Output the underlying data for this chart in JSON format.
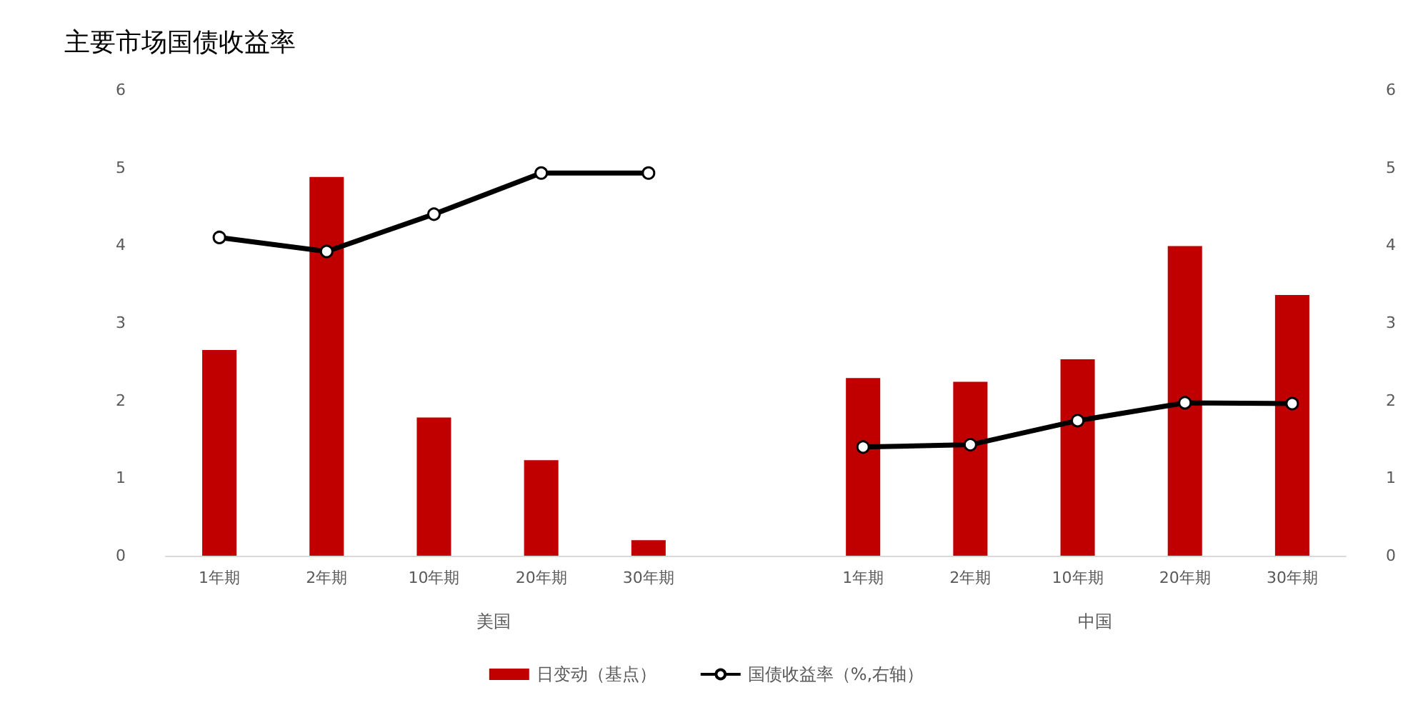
{
  "chart_data": {
    "type": "bar",
    "title": "主要市场国债收益率",
    "categories": [
      "1年期",
      "2年期",
      "10年期",
      "20年期",
      "30年期",
      null,
      "1年期",
      "2年期",
      "10年期",
      "20年期",
      "30年期"
    ],
    "series": [
      {
        "name": "日变动（基点）",
        "color": "#c00000",
        "values": [
          2.65,
          4.88,
          1.78,
          1.23,
          0.2,
          null,
          2.29,
          2.24,
          2.53,
          3.99,
          3.36
        ]
      },
      {
        "name": "国债收益率（%,右轴）",
        "type": "line",
        "axis": "y2",
        "color": "#000000",
        "marker": "circle",
        "values": [
          4.1,
          3.92,
          4.4,
          4.93,
          4.93,
          null,
          1.4,
          1.43,
          1.74,
          1.97,
          1.96
        ]
      }
    ],
    "annotations": [
      "美国",
      "中国"
    ],
    "ylim": [
      0,
      6
    ],
    "yticks": [
      0,
      1,
      2,
      3,
      4,
      5,
      6
    ],
    "y2lim": [
      0,
      6
    ],
    "y2ticks": [
      0,
      1,
      2,
      3,
      4,
      5,
      6
    ],
    "grid": false,
    "legend": "bottom"
  }
}
